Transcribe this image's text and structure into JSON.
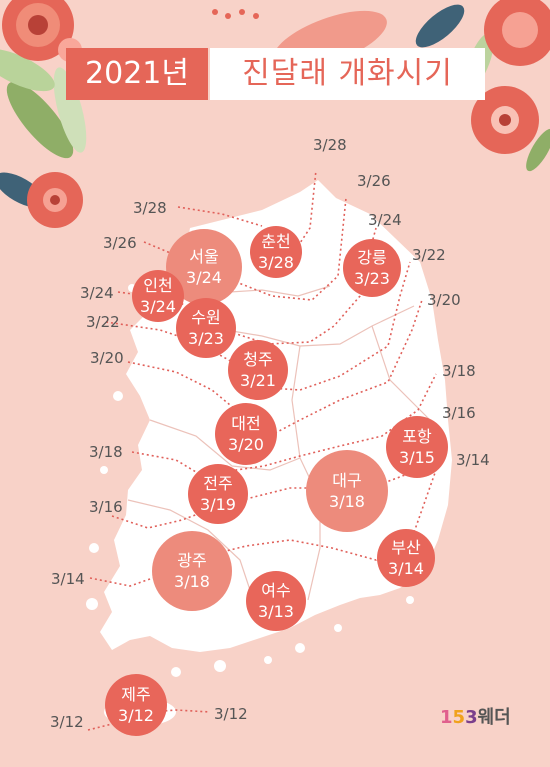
{
  "title": {
    "year": "2021년",
    "subtitle": "진달래 개화시기"
  },
  "isoline_labels": [
    {
      "id": "r-328-a",
      "text": "3/28"
    },
    {
      "id": "r-326-a",
      "text": "3/26"
    },
    {
      "id": "r-324-a",
      "text": "3/24"
    },
    {
      "id": "r-322-a",
      "text": "3/22"
    },
    {
      "id": "r-320-a",
      "text": "3/20"
    },
    {
      "id": "r-318-a",
      "text": "3/18"
    },
    {
      "id": "r-316-a",
      "text": "3/16"
    },
    {
      "id": "r-314-a",
      "text": "3/14"
    },
    {
      "id": "l-328",
      "text": "3/28"
    },
    {
      "id": "l-326",
      "text": "3/26"
    },
    {
      "id": "l-324",
      "text": "3/24"
    },
    {
      "id": "l-322",
      "text": "3/22"
    },
    {
      "id": "l-320",
      "text": "3/20"
    },
    {
      "id": "l-318",
      "text": "3/18"
    },
    {
      "id": "l-316",
      "text": "3/16"
    },
    {
      "id": "l-314",
      "text": "3/14"
    },
    {
      "id": "l-312",
      "text": "3/12"
    },
    {
      "id": "jeju-312",
      "text": "3/12"
    }
  ],
  "cities": [
    {
      "id": "chuncheon",
      "name": "춘천",
      "date": "3/28",
      "color": "#e8665a"
    },
    {
      "id": "seoul",
      "name": "서울",
      "date": "3/24",
      "color": "#ed8b7c"
    },
    {
      "id": "incheon",
      "name": "인천",
      "date": "3/24",
      "color": "#e8665a"
    },
    {
      "id": "suwon",
      "name": "수원",
      "date": "3/23",
      "color": "#e8665a"
    },
    {
      "id": "gangneung",
      "name": "강릉",
      "date": "3/23",
      "color": "#e8665a"
    },
    {
      "id": "cheongju",
      "name": "청주",
      "date": "3/21",
      "color": "#e8665a"
    },
    {
      "id": "daejeon",
      "name": "대전",
      "date": "3/20",
      "color": "#e8665a"
    },
    {
      "id": "pohang",
      "name": "포항",
      "date": "3/15",
      "color": "#e8665a"
    },
    {
      "id": "daegu",
      "name": "대구",
      "date": "3/18",
      "color": "#ed8b7c"
    },
    {
      "id": "jeonju",
      "name": "전주",
      "date": "3/19",
      "color": "#e8665a"
    },
    {
      "id": "busan",
      "name": "부산",
      "date": "3/14",
      "color": "#e8665a"
    },
    {
      "id": "gwangju",
      "name": "광주",
      "date": "3/18",
      "color": "#ed8b7c"
    },
    {
      "id": "yeosu",
      "name": "여수",
      "date": "3/13",
      "color": "#e8665a"
    },
    {
      "id": "jeju",
      "name": "제주",
      "date": "3/12",
      "color": "#e8665a"
    }
  ],
  "brand": {
    "p1": "1",
    "p2": "5",
    "p3": "3",
    "p4": "웨더"
  },
  "colors": {
    "background": "#f8d2c8",
    "accent": "#e56658",
    "land": "#ffffff",
    "isoline": "#e0605a"
  }
}
